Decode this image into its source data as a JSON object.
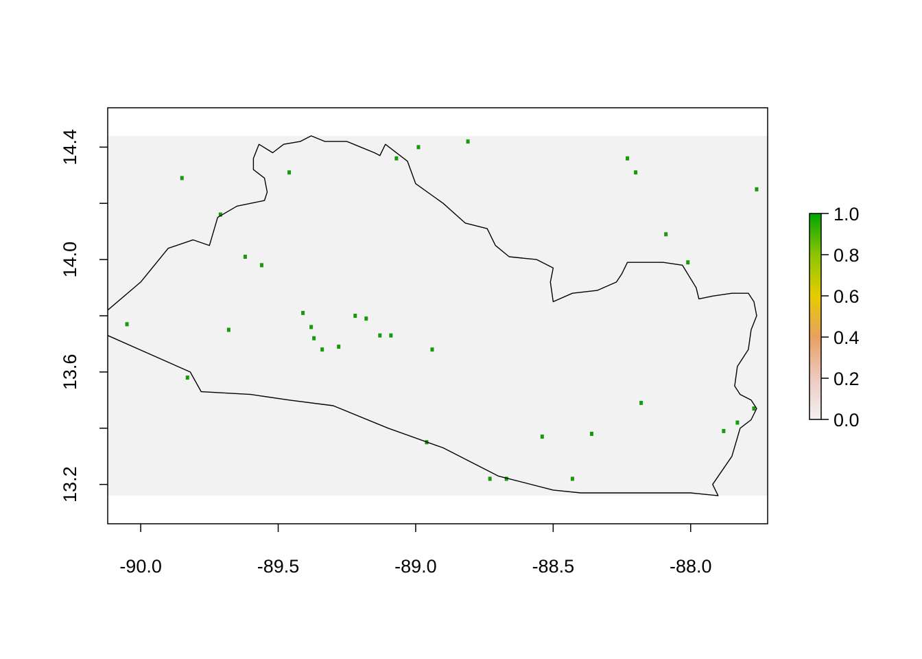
{
  "chart_data": {
    "type": "heatmap",
    "title": "",
    "xlabel": "",
    "ylabel": "",
    "xlim": [
      -90.12,
      -87.72
    ],
    "ylim": [
      13.06,
      14.54
    ],
    "raster_extent": {
      "x": [
        -90.12,
        -87.72
      ],
      "y": [
        13.16,
        14.44
      ]
    },
    "x_ticks": [
      -90.0,
      -89.5,
      -89.0,
      -88.5,
      -88.0
    ],
    "x_tick_labels": [
      "-90.0",
      "-89.5",
      "-89.0",
      "-88.5",
      "-88.0"
    ],
    "y_ticks": [
      13.2,
      13.4,
      13.6,
      13.8,
      14.0,
      14.2,
      14.4
    ],
    "y_tick_labels": [
      "13.2",
      "",
      "13.6",
      "",
      "14.0",
      "",
      "14.4"
    ],
    "legend": {
      "position": "right",
      "range": [
        0,
        1
      ],
      "ticks": [
        0.0,
        0.2,
        0.4,
        0.6,
        0.8,
        1.0
      ],
      "tick_labels": [
        "0.0",
        "0.2",
        "0.4",
        "0.6",
        "0.8",
        "1.0"
      ],
      "colors": [
        "#f2f2f2",
        "#edc9c0",
        "#e8a060",
        "#e6cc00",
        "#8cc500",
        "#00a600"
      ]
    },
    "background_value": 0,
    "background_color": "#f2f2f2",
    "high_value_color": "#1a9a0a",
    "high_value_cells": [
      [
        -90.05,
        13.77
      ],
      [
        -89.85,
        14.29
      ],
      [
        -89.83,
        13.58
      ],
      [
        -89.71,
        14.16
      ],
      [
        -89.68,
        13.75
      ],
      [
        -89.62,
        14.01
      ],
      [
        -89.56,
        13.98
      ],
      [
        -89.46,
        14.31
      ],
      [
        -89.41,
        13.81
      ],
      [
        -89.38,
        13.76
      ],
      [
        -89.37,
        13.72
      ],
      [
        -89.34,
        13.68
      ],
      [
        -89.28,
        13.69
      ],
      [
        -89.22,
        13.8
      ],
      [
        -89.18,
        13.79
      ],
      [
        -89.13,
        13.73
      ],
      [
        -89.09,
        13.73
      ],
      [
        -89.07,
        14.36
      ],
      [
        -88.99,
        14.4
      ],
      [
        -88.96,
        13.35
      ],
      [
        -88.94,
        13.68
      ],
      [
        -88.81,
        14.42
      ],
      [
        -88.73,
        13.22
      ],
      [
        -88.67,
        13.22
      ],
      [
        -88.54,
        13.37
      ],
      [
        -88.43,
        13.22
      ],
      [
        -88.36,
        13.38
      ],
      [
        -88.23,
        14.36
      ],
      [
        -88.18,
        13.49
      ],
      [
        -88.2,
        14.31
      ],
      [
        -88.09,
        14.09
      ],
      [
        -88.01,
        13.99
      ],
      [
        -87.88,
        13.39
      ],
      [
        -87.83,
        13.42
      ],
      [
        -87.77,
        13.47
      ],
      [
        -87.76,
        14.25
      ]
    ],
    "outline": [
      [
        -90.12,
        13.73
      ],
      [
        -89.82,
        13.6
      ],
      [
        -89.78,
        13.53
      ],
      [
        -89.6,
        13.52
      ],
      [
        -89.46,
        13.5
      ],
      [
        -89.3,
        13.48
      ],
      [
        -89.1,
        13.4
      ],
      [
        -88.9,
        13.33
      ],
      [
        -88.7,
        13.23
      ],
      [
        -88.5,
        13.18
      ],
      [
        -88.4,
        13.17
      ],
      [
        -88.2,
        13.17
      ],
      [
        -88.0,
        13.17
      ],
      [
        -87.9,
        13.16
      ],
      [
        -87.92,
        13.2
      ],
      [
        -87.85,
        13.3
      ],
      [
        -87.82,
        13.4
      ],
      [
        -87.78,
        13.43
      ],
      [
        -87.76,
        13.47
      ],
      [
        -87.78,
        13.5
      ],
      [
        -87.82,
        13.52
      ],
      [
        -87.84,
        13.55
      ],
      [
        -87.83,
        13.62
      ],
      [
        -87.79,
        13.68
      ],
      [
        -87.78,
        13.75
      ],
      [
        -87.76,
        13.8
      ],
      [
        -87.77,
        13.85
      ],
      [
        -87.79,
        13.88
      ],
      [
        -87.85,
        13.88
      ],
      [
        -87.92,
        13.87
      ],
      [
        -87.97,
        13.86
      ],
      [
        -87.98,
        13.9
      ],
      [
        -88.03,
        13.98
      ],
      [
        -88.1,
        13.99
      ],
      [
        -88.23,
        13.99
      ],
      [
        -88.25,
        13.95
      ],
      [
        -88.27,
        13.92
      ],
      [
        -88.34,
        13.89
      ],
      [
        -88.43,
        13.88
      ],
      [
        -88.5,
        13.85
      ],
      [
        -88.51,
        13.92
      ],
      [
        -88.5,
        13.97
      ],
      [
        -88.56,
        14.0
      ],
      [
        -88.66,
        14.01
      ],
      [
        -88.71,
        14.05
      ],
      [
        -88.74,
        14.11
      ],
      [
        -88.82,
        14.13
      ],
      [
        -88.9,
        14.2
      ],
      [
        -89.0,
        14.27
      ],
      [
        -89.03,
        14.35
      ],
      [
        -89.11,
        14.41
      ],
      [
        -89.13,
        14.37
      ],
      [
        -89.15,
        14.38
      ],
      [
        -89.2,
        14.4
      ],
      [
        -89.25,
        14.42
      ],
      [
        -89.33,
        14.42
      ],
      [
        -89.38,
        14.44
      ],
      [
        -89.42,
        14.42
      ],
      [
        -89.48,
        14.41
      ],
      [
        -89.52,
        14.38
      ],
      [
        -89.57,
        14.41
      ],
      [
        -89.59,
        14.36
      ],
      [
        -89.59,
        14.32
      ],
      [
        -89.55,
        14.29
      ],
      [
        -89.54,
        14.24
      ],
      [
        -89.55,
        14.21
      ],
      [
        -89.65,
        14.19
      ],
      [
        -89.72,
        14.15
      ],
      [
        -89.75,
        14.05
      ],
      [
        -89.81,
        14.07
      ],
      [
        -89.9,
        14.04
      ],
      [
        -90.0,
        13.92
      ],
      [
        -90.12,
        13.82
      ]
    ]
  }
}
